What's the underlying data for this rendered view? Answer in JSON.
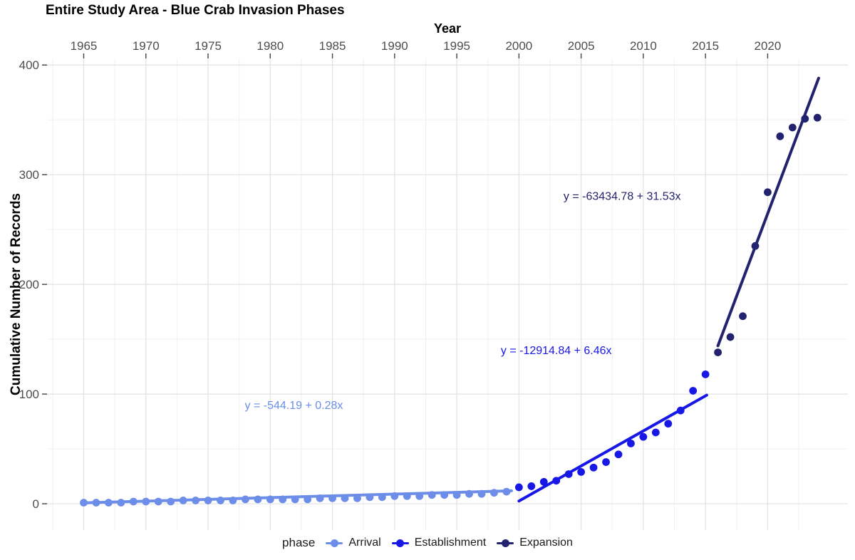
{
  "chart_data": {
    "type": "scatter",
    "title": "Entire Study Area - Blue Crab Invasion Phases",
    "xlabel": "Year",
    "ylabel": "Cumulative Number of Records",
    "x_ticks": [
      1965,
      1970,
      1975,
      1980,
      1985,
      1990,
      1995,
      2000,
      2005,
      2010,
      2015,
      2020
    ],
    "x_minor_ticks": [
      1962.5,
      1967.5,
      1972.5,
      1977.5,
      1982.5,
      1987.5,
      1992.5,
      1997.5,
      2002.5,
      2007.5,
      2012.5,
      2017.5,
      2022.5
    ],
    "y_ticks": [
      0,
      100,
      200,
      300,
      400
    ],
    "y_minor_ticks": [
      50,
      150,
      250,
      350
    ],
    "xlim": [
      1962.05,
      2026.45
    ],
    "ylim": [
      -24,
      406
    ],
    "grid": {
      "major": true,
      "minor": true
    },
    "legend": {
      "title": "phase",
      "position": "bottom"
    },
    "style": {
      "background": "#ffffff",
      "grid_major_color": "#e2e2e2",
      "grid_minor_color": "#f0f0f0",
      "tick_color": "#404040",
      "tick_label_color": "#4d4d4d",
      "point_radius": 5.4,
      "line_width": 4
    },
    "series": [
      {
        "name": "Arrival",
        "color": "#6c8de8",
        "x": [
          1965,
          1966,
          1967,
          1968,
          1969,
          1970,
          1971,
          1972,
          1973,
          1974,
          1975,
          1976,
          1977,
          1978,
          1979,
          1980,
          1981,
          1982,
          1983,
          1984,
          1985,
          1986,
          1987,
          1988,
          1989,
          1990,
          1991,
          1992,
          1993,
          1994,
          1995,
          1996,
          1997,
          1998,
          1999
        ],
        "y": [
          1,
          1,
          1,
          1,
          2,
          2,
          2,
          2,
          3,
          3,
          3,
          3,
          3,
          4,
          4,
          4,
          4,
          4,
          4,
          5,
          5,
          5,
          5,
          6,
          6,
          7,
          7,
          7,
          8,
          8,
          8,
          9,
          9,
          10,
          11
        ],
        "fit_line": {
          "x1": 1965,
          "y1": 0.8,
          "x2": 1999.4,
          "y2": 11.8
        },
        "equation": {
          "text": "y = -544.19 + 0.28x",
          "intercept": -544.19,
          "slope": 0.28,
          "label_x": 1981.9,
          "label_y": 90
        }
      },
      {
        "name": "Establishment",
        "color": "#1717e6",
        "x": [
          2000,
          2001,
          2002,
          2003,
          2004,
          2005,
          2006,
          2007,
          2008,
          2009,
          2010,
          2011,
          2012,
          2013,
          2014,
          2015
        ],
        "y": [
          15,
          16,
          20,
          21,
          27,
          29,
          33,
          38,
          45,
          55,
          61,
          65,
          73,
          85,
          103,
          118
        ],
        "fit_line": {
          "x1": 2000,
          "y1": 2.5,
          "x2": 2015.1,
          "y2": 99
        },
        "equation": {
          "text": "y = -12914.84 + 6.46x",
          "intercept": -12914.84,
          "slope": 6.46,
          "label_x": 2003,
          "label_y": 140
        }
      },
      {
        "name": "Expansion",
        "color": "#22226e",
        "x": [
          2016,
          2017,
          2018,
          2019,
          2020,
          2021,
          2022,
          2023,
          2024
        ],
        "y": [
          138,
          152,
          171,
          235,
          284,
          335,
          343,
          351,
          352
        ],
        "fit_line": {
          "x1": 2016,
          "y1": 144,
          "x2": 2024.1,
          "y2": 388
        },
        "equation": {
          "text": "y = -63434.78 + 31.53x",
          "intercept": -63434.78,
          "slope": 31.53,
          "label_x": 2008.3,
          "label_y": 280.5
        }
      }
    ]
  }
}
